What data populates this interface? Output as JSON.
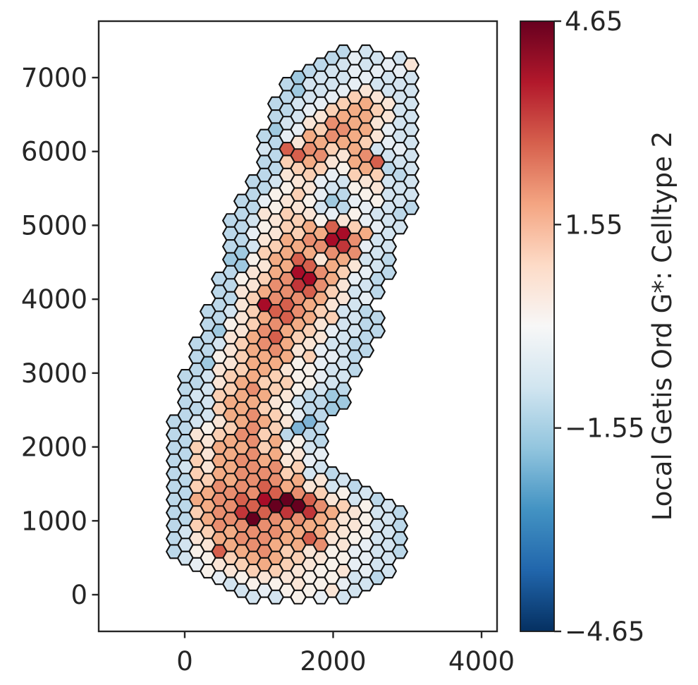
{
  "figure": {
    "background": "#ffffff",
    "spine_color": "#262626",
    "tick_color": "#262626"
  },
  "chart_data": {
    "type": "hexbin",
    "title": "",
    "xlabel": "",
    "ylabel": "",
    "x_ticks": [
      0,
      2000,
      4000
    ],
    "y_ticks": [
      0,
      1000,
      2000,
      3000,
      4000,
      5000,
      6000,
      7000
    ],
    "xlim": [
      -1160,
      4210
    ],
    "ylim": [
      -500,
      7765
    ],
    "grid": false,
    "colorbar": {
      "label": "Local Getis Ord G*: Celltype 2",
      "vmin": -4.65,
      "vmax": 4.65,
      "ticks": [
        4.65,
        1.55,
        -1.55,
        -4.65
      ],
      "cmap": "RdBu_r",
      "gradient_stops": [
        "#67001f",
        "#b2182b",
        "#d6604d",
        "#f4a582",
        "#fddbc7",
        "#f7f7f7",
        "#d1e5f0",
        "#92c5de",
        "#4393c3",
        "#2166ac",
        "#053061"
      ]
    },
    "hex_grid": {
      "comment": "rows of hexagons; k = half-row index (y = row0_y + row_dy*k in px), s = start offset in col_dx units, each char = one hexagon every `step` px; '.' = gap",
      "row0_y": 73.5,
      "row_dy": 9.2,
      "col_x0": 231,
      "col_dx": 16,
      "step": 32,
      "hex_radius": 10.9,
      "stroke": "#111111",
      "stroke_width": 2.1,
      "palette": {
        "9": "#67001f",
        "8": "#a80c28",
        "7": "#c13639",
        "6": "#d6604d",
        "5": "#e98e6f",
        "4": "#f3ac85",
        "3": "#fbd0b4",
        "2": "#fae5d6",
        "1": "#f8f1ea",
        "a": "#e7eef4",
        "b": "#d3e4f0",
        "c": "#bcd8ea",
        "d": "#9fc9e0",
        "e": "#7fb4d6"
      },
      "value_map": {
        "9": 4.4,
        "8": 3.6,
        "7": 2.8,
        "6": 2.1,
        "5": 1.4,
        "4": 0.9,
        "3": 0.5,
        "2": 0.2,
        "1": 0.0,
        "a": -0.3,
        "b": -0.7,
        "c": -1.2,
        "d": -1.7,
        "e": -2.3
      },
      "rows": [
        {
          "k": 0,
          "s": 16,
          "cells": "cb"
        },
        {
          "k": 1,
          "s": 15,
          "cells": "cabb"
        },
        {
          "k": 2,
          "s": 14,
          "cells": "cbba2"
        },
        {
          "k": 3,
          "s": 13,
          "cells": "cbaaa"
        },
        {
          "k": 4,
          "s": 12,
          "cells": "dbbabb"
        },
        {
          "k": 5,
          "s": 11,
          "cells": "cbbabb"
        },
        {
          "k": 6,
          "s": 12,
          "cells": "dba2bb"
        },
        {
          "k": 7,
          "s": 11,
          "cells": "cba32b"
        },
        {
          "k": 8,
          "s": 10,
          "cells": "cba342b"
        },
        {
          "k": 9,
          "s": 11,
          "cells": "ca343b"
        },
        {
          "k": 10,
          "s": 10,
          "cells": "cb2442b"
        },
        {
          "k": 11,
          "s": 11,
          "cells": "b2542b"
        },
        {
          "k": 12,
          "s": 10,
          "cells": "da354ab"
        },
        {
          "k": 13,
          "s": 9,
          "cells": "ca4542b"
        },
        {
          "k": 14,
          "s": 10,
          "cells": "c2443ab"
        },
        {
          "k": 15,
          "s": 9,
          "cells": "b6534ba"
        },
        {
          "k": 16,
          "s": 10,
          "cells": "c6525bb"
        },
        {
          "k": 17,
          "s": 9,
          "cells": "c34246b"
        },
        {
          "k": 18,
          "s": 10,
          "cells": "c3314cb"
        },
        {
          "k": 19,
          "s": 9,
          "cells": "c23a33c"
        },
        {
          "k": 20,
          "s": 8,
          "cells": "cb2ab2bb"
        },
        {
          "k": 21,
          "s": 9,
          "cells": "c12b12b"
        },
        {
          "k": 22,
          "s": 8,
          "cells": "c13ac1bb"
        },
        {
          "k": 23,
          "s": 7,
          "cells": "ca21da1b"
        },
        {
          "k": 24,
          "s": 8,
          "cells": "c12bcabc"
        },
        {
          "k": 25,
          "s": 7,
          "cells": "c232a1bc"
        },
        {
          "k": 26,
          "s": 6,
          "cells": "cb2312ab"
        },
        {
          "k": 27,
          "s": 7,
          "cells": "c13463ab"
        },
        {
          "k": 28,
          "s": 6,
          "cells": "ca23484b"
        },
        {
          "k": 29,
          "s": 7,
          "cells": "c24585b"
        },
        {
          "k": 30,
          "s": 6,
          "cells": "cb3457ab"
        },
        {
          "k": 31,
          "s": 7,
          "cells": "d34455b"
        },
        {
          "k": 32,
          "s": 6,
          "cells": "d14624bc"
        },
        {
          "k": 33,
          "s": 7,
          "cells": "d24642b"
        },
        {
          "k": 34,
          "s": 6,
          "cells": "c24853ac"
        },
        {
          "k": 35,
          "s": 5,
          "cells": "c13584ac"
        },
        {
          "k": 36,
          "s": 6,
          "cells": "c25752b"
        },
        {
          "k": 37,
          "s": 5,
          "cells": "c24563bc"
        },
        {
          "k": 38,
          "s": 6,
          "cells": "c35542a"
        },
        {
          "k": 39,
          "s": 5,
          "cells": "c28642b"
        },
        {
          "k": 40,
          "s": 4,
          "cells": "cb3653bc"
        },
        {
          "k": 41,
          "s": 5,
          "cells": "c24643bc"
        },
        {
          "k": 42,
          "s": 4,
          "cells": "c13542bc"
        },
        {
          "k": 43,
          "s": 5,
          "cells": "d2543abc"
        },
        {
          "k": 44,
          "s": 4,
          "cells": "c24632bc"
        },
        {
          "k": 45,
          "s": 3,
          "cells": "cb3542bc"
        },
        {
          "k": 46,
          "s": 4,
          "cells": "c2452abc"
        },
        {
          "k": 47,
          "s": 3,
          "cells": "c13443ac"
        },
        {
          "k": 48,
          "s": 4,
          "cells": "d2441ab"
        },
        {
          "k": 49,
          "s": 3,
          "cells": "c23421bc"
        },
        {
          "k": 50,
          "s": 2,
          "cells": "cb3431ab"
        },
        {
          "k": 51,
          "s": 3,
          "cells": "c24331b"
        },
        {
          "k": 52,
          "s": 2,
          "cells": "cb3531bc"
        },
        {
          "k": 53,
          "s": 3,
          "cells": "b3442cd"
        },
        {
          "k": 54,
          "s": 2,
          "cells": "cb442bcd"
        },
        {
          "k": 55,
          "s": 3,
          "cells": "c3431cd"
        },
        {
          "k": 56,
          "s": 2,
          "cells": "cb453ac"
        },
        {
          "k": 57,
          "s": 1,
          "cells": "cb2442e"
        },
        {
          "k": 58,
          "s": 2,
          "cells": "c1353ec"
        },
        {
          "k": 59,
          "s": 1,
          "cells": "c2353cc"
        },
        {
          "k": 60,
          "s": 2,
          "cells": "c24541c"
        },
        {
          "k": 61,
          "s": 1,
          "cells": "c34431b"
        },
        {
          "k": 62,
          "s": 2,
          "cells": "c24542a"
        },
        {
          "k": 63,
          "s": 1,
          "cells": "c34542a"
        },
        {
          "k": 64,
          "s": 2,
          "cells": "b24553b"
        },
        {
          "k": 65,
          "s": 1,
          "cells": "c34553bc"
        },
        {
          "k": 66,
          "s": 2,
          "cells": "c345542b"
        },
        {
          "k": 67,
          "s": 1,
          "cells": "c355642bc"
        },
        {
          "k": 68,
          "s": 2,
          "cells": "c4556531b"
        },
        {
          "k": 69,
          "s": 1,
          "cells": "c4568962bc"
        },
        {
          "k": 70,
          "s": 2,
          "cells": "c45699531b"
        },
        {
          "k": 71,
          "s": 1,
          "cells": "c35767742bc"
        },
        {
          "k": 72,
          "s": 2,
          "cells": "c45955421b"
        },
        {
          "k": 73,
          "s": 1,
          "cells": "c35554432bc"
        },
        {
          "k": 74,
          "s": 2,
          "cells": "b34554421b"
        },
        {
          "k": 75,
          "s": 1,
          "cells": "c24554621bc"
        },
        {
          "k": 76,
          "s": 2,
          "cells": "b2454452ab"
        },
        {
          "k": 77,
          "s": 1,
          "cells": "c1645321abc"
        },
        {
          "k": 78,
          "s": 2,
          "cells": "b1344321ab"
        },
        {
          "k": 79,
          "s": 3,
          "cells": "a234321ab"
        },
        {
          "k": 80,
          "s": 4,
          "cells": "1233212ab"
        },
        {
          "k": 81,
          "s": 5,
          "cells": "a12211bc"
        },
        {
          "k": 82,
          "s": 6,
          "cells": "b1121ab"
        },
        {
          "k": 83,
          "s": 7,
          "cells": "ba112b"
        },
        {
          "k": 84,
          "s": 8,
          "cells": "bb1ab"
        }
      ]
    }
  }
}
